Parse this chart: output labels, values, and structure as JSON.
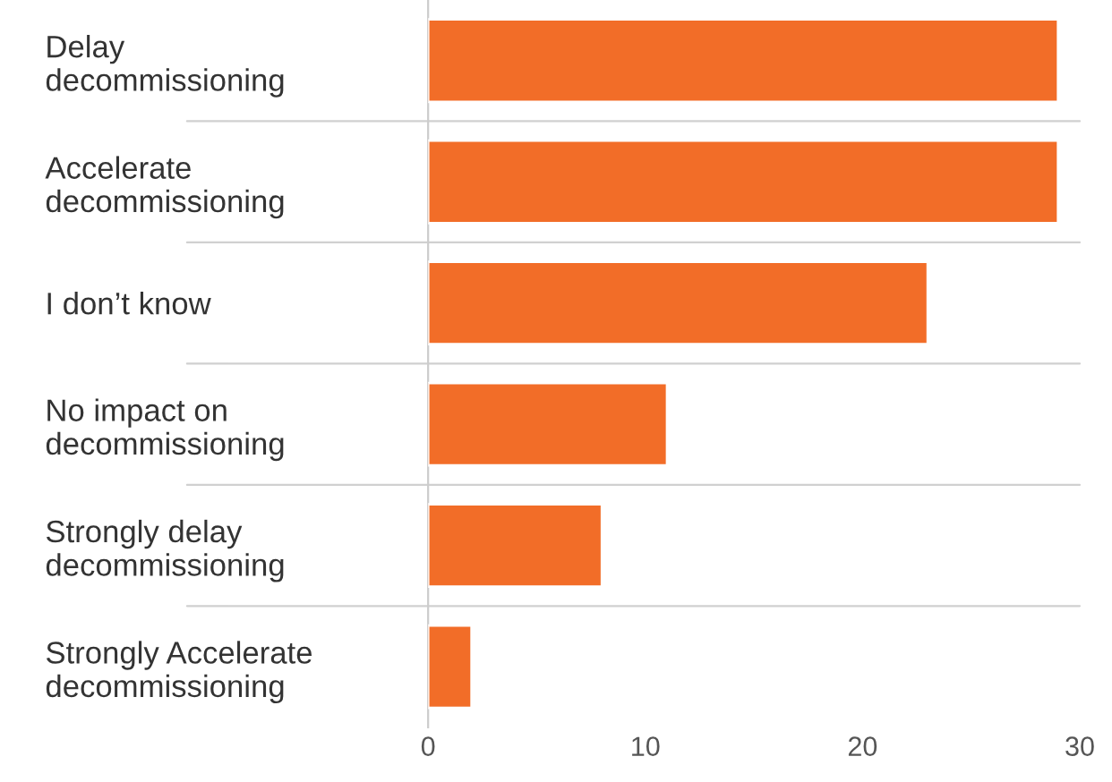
{
  "chart_data": {
    "type": "bar",
    "orientation": "horizontal",
    "categories": [
      "Delay\ndecommissioning",
      "Accelerate\ndecommissioning",
      "I don’t know",
      "No impact on\ndecommissioning",
      "Strongly delay\ndecommissioning",
      "Strongly Accelerate\ndecommissioning"
    ],
    "values": [
      29,
      29,
      23,
      11,
      8,
      2
    ],
    "color": "#f26d28",
    "xlim": [
      0,
      30
    ],
    "xticks": [
      0,
      10,
      20,
      30
    ],
    "grid": "y",
    "legend": false
  }
}
